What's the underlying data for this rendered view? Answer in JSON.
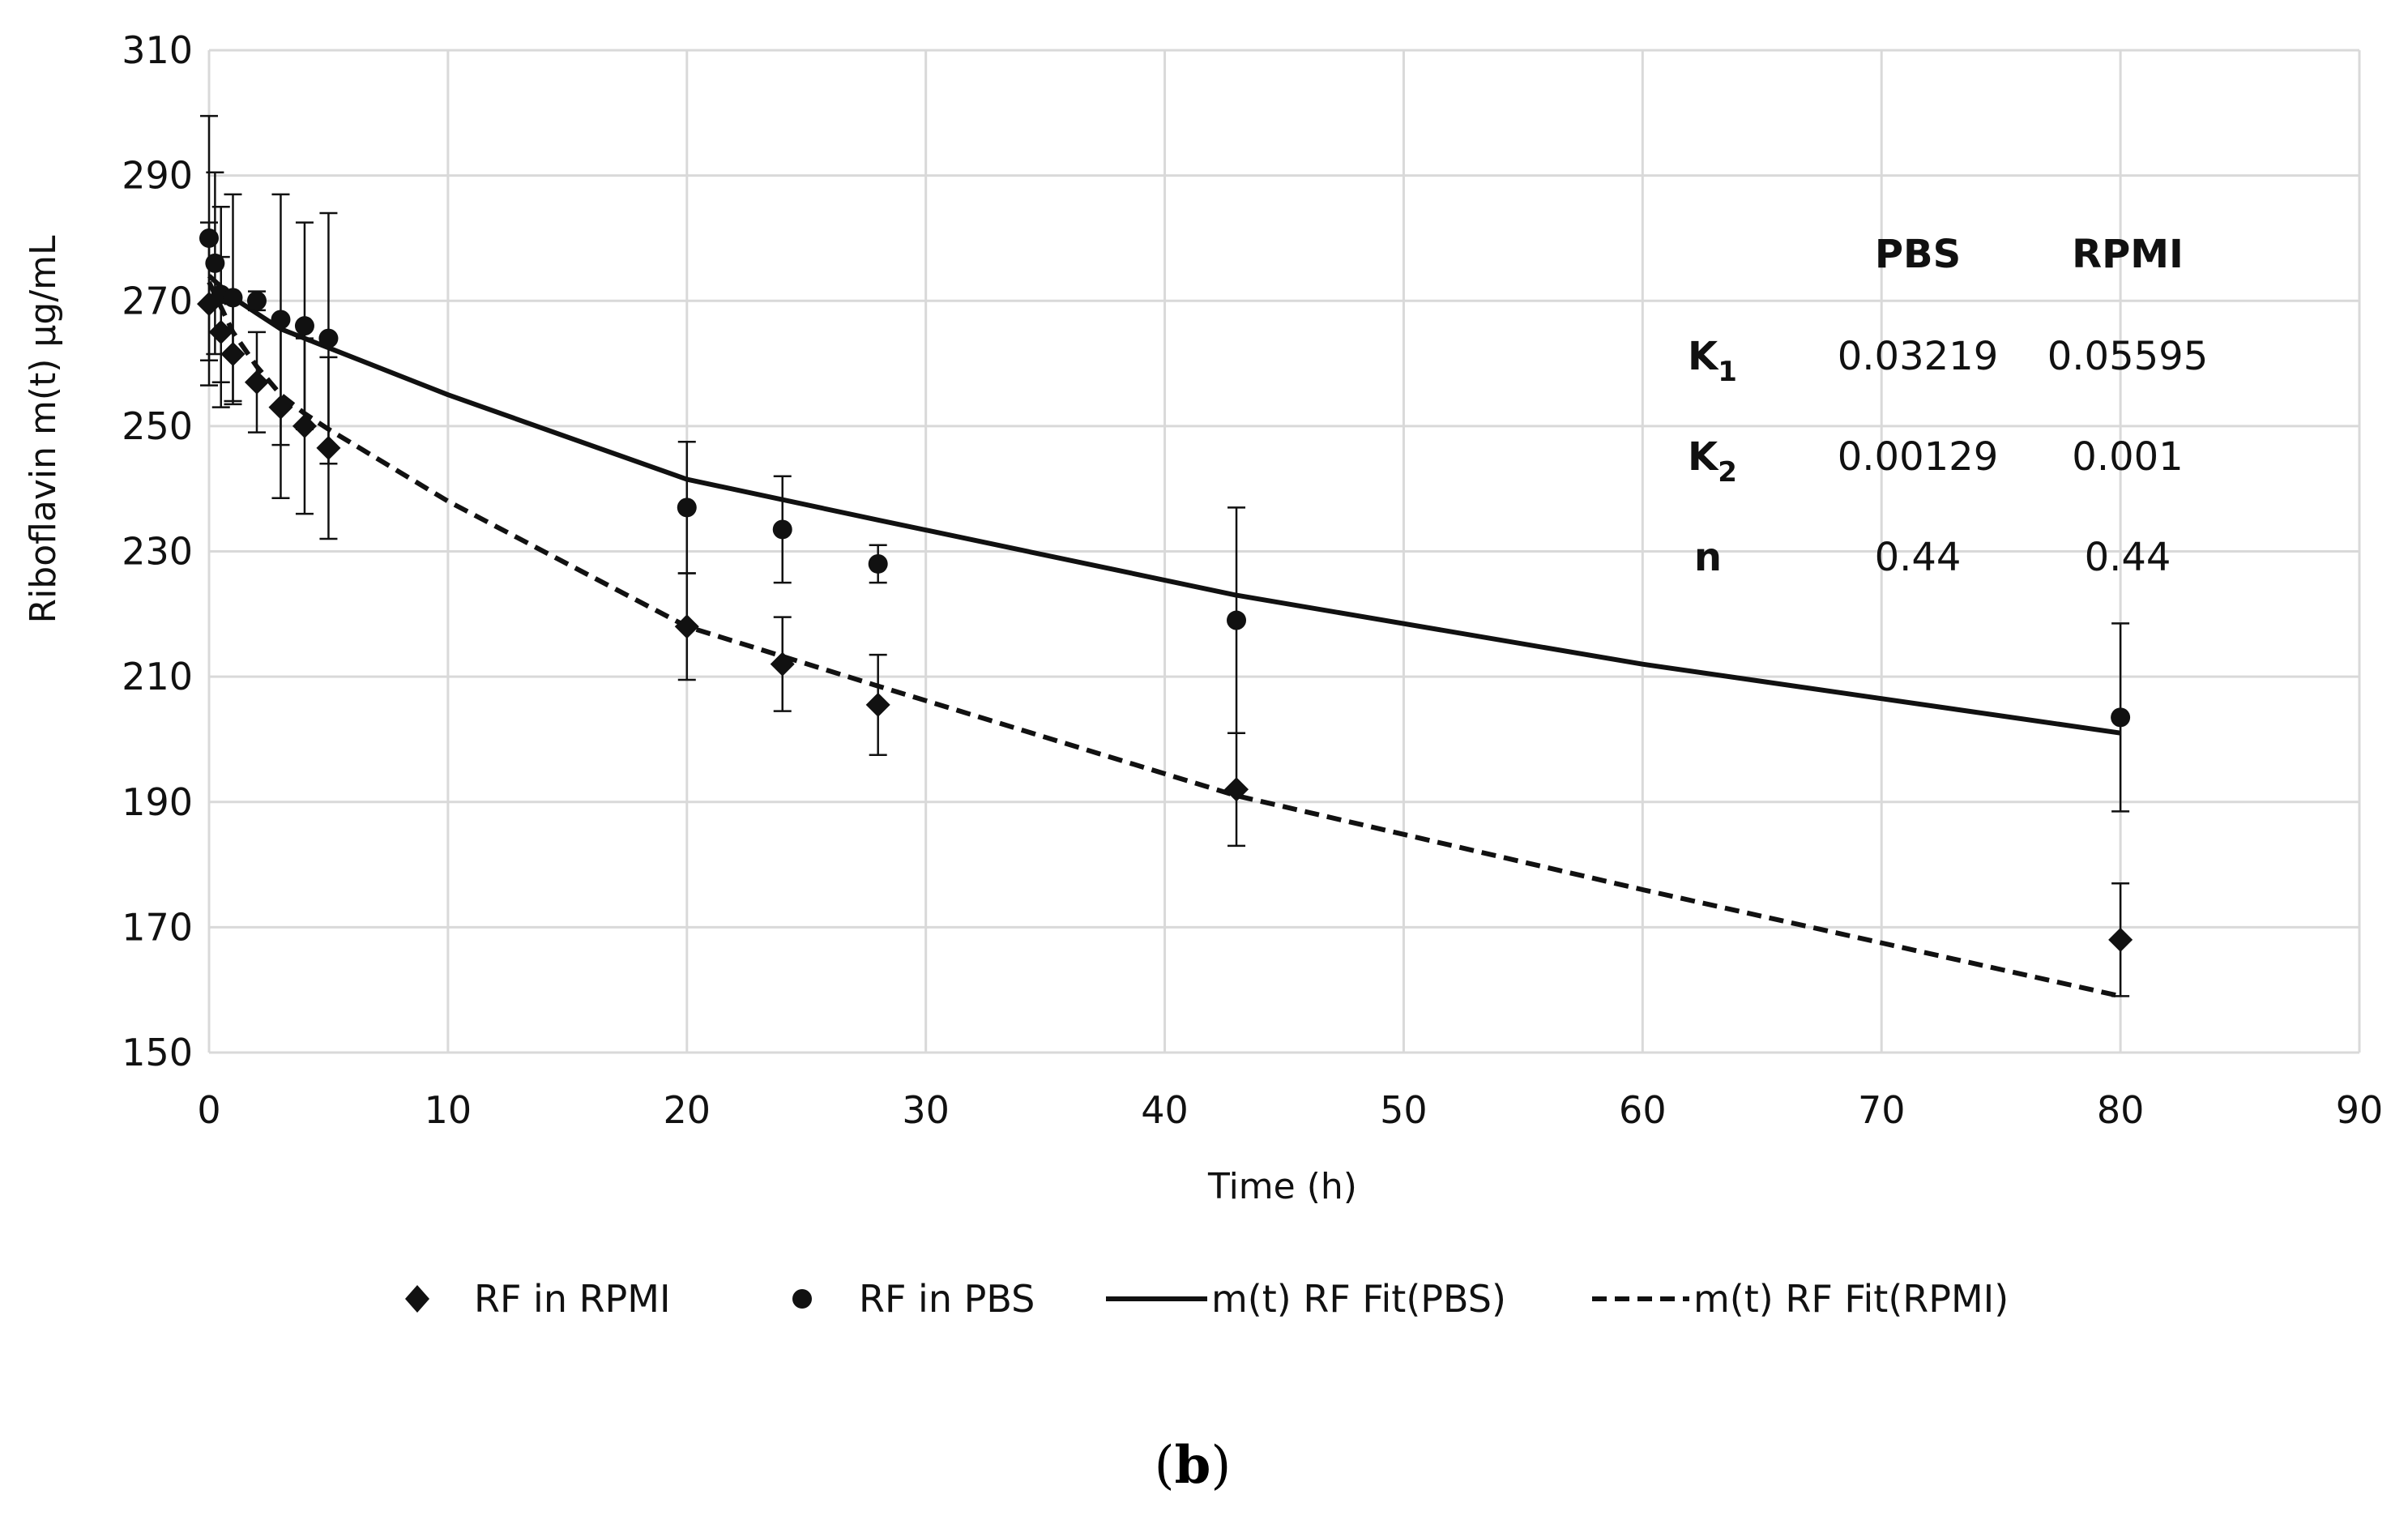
{
  "chart_data": {
    "type": "scatter",
    "title": "",
    "xlabel": "Time (h)",
    "ylabel": "Riboflavin m(t) µg/mL",
    "xlim": [
      0,
      90
    ],
    "ylim": [
      150,
      310
    ],
    "xticks": [
      0,
      10,
      20,
      30,
      40,
      50,
      60,
      70,
      80,
      90
    ],
    "yticks": [
      150,
      170,
      190,
      210,
      230,
      250,
      270,
      290,
      310
    ],
    "grid": true,
    "legend_position": "bottom",
    "series": [
      {
        "name": "RF in RPMI",
        "kind": "points",
        "marker": "diamond",
        "points": [
          {
            "x": 0.0,
            "y": 269.5,
            "err": 13
          },
          {
            "x": 0.5,
            "y": 265.0,
            "err": 12
          },
          {
            "x": 1.0,
            "y": 261.5,
            "err": 8
          },
          {
            "x": 2.0,
            "y": 257.0,
            "err": 8
          },
          {
            "x": 3.0,
            "y": 253.0,
            "err": 14.5
          },
          {
            "x": 4.0,
            "y": 250.0,
            "err": 14
          },
          {
            "x": 5.0,
            "y": 246.5,
            "err": 14.5
          },
          {
            "x": 20.0,
            "y": 218.0,
            "err": 8.5
          },
          {
            "x": 24.0,
            "y": 212.0,
            "err": 7.5
          },
          {
            "x": 28.0,
            "y": 205.5,
            "err": 8
          },
          {
            "x": 43.0,
            "y": 192.0,
            "err": 9
          },
          {
            "x": 80.0,
            "y": 168.0,
            "err": 9
          }
        ]
      },
      {
        "name": "RF in PBS",
        "kind": "points",
        "marker": "circle",
        "points": [
          {
            "x": 0.0,
            "y": 280.0,
            "err": 19.5
          },
          {
            "x": 0.25,
            "y": 276.0,
            "err": 14.5
          },
          {
            "x": 0.5,
            "y": 271.0,
            "err": 14
          },
          {
            "x": 1.0,
            "y": 270.5,
            "err": 16.5
          },
          {
            "x": 2.0,
            "y": 270.0,
            "err": 1.5
          },
          {
            "x": 3.0,
            "y": 267.0,
            "err": 20
          },
          {
            "x": 4.0,
            "y": 266.0,
            "err": 16.5
          },
          {
            "x": 5.0,
            "y": 264.0,
            "err": 20
          },
          {
            "x": 20.0,
            "y": 237.0,
            "err": 10.5
          },
          {
            "x": 24.0,
            "y": 233.5,
            "err": 8.5
          },
          {
            "x": 28.0,
            "y": 228.0,
            "err": 3
          },
          {
            "x": 43.0,
            "y": 219.0,
            "err": 18
          },
          {
            "x": 80.0,
            "y": 203.5,
            "err": 15
          }
        ]
      },
      {
        "name": "m(t) RF Fit(PBS)",
        "kind": "line",
        "dash": "solid",
        "x": [
          0,
          1,
          2,
          3,
          4,
          5,
          10,
          20,
          28,
          43,
          60,
          80
        ],
        "y": [
          274,
          270.5,
          268,
          265.5,
          264,
          262.5,
          255,
          241.5,
          235,
          223,
          212,
          201
        ]
      },
      {
        "name": "m(t) RF Fit(RPMI)",
        "kind": "line",
        "dash": "dashed",
        "x": [
          0,
          1,
          2,
          3,
          4,
          5,
          10,
          20,
          28,
          43,
          60,
          80
        ],
        "y": [
          273,
          265,
          259.5,
          255,
          252,
          249.5,
          238,
          218,
          208.5,
          191,
          176,
          159
        ]
      }
    ],
    "parameter_table": {
      "col_headers": [
        "",
        "PBS",
        "RPMI"
      ],
      "rows": [
        {
          "label": "K",
          "sub": "1",
          "values": [
            "0.03219",
            "0.05595"
          ]
        },
        {
          "label": "K",
          "sub": "2",
          "values": [
            "0.00129",
            "0.001"
          ]
        },
        {
          "label": "n",
          "sub": "",
          "values": [
            "0.44",
            "0.44"
          ]
        }
      ]
    }
  },
  "caption": {
    "open": "(",
    "letter": "b",
    "close": ")"
  }
}
